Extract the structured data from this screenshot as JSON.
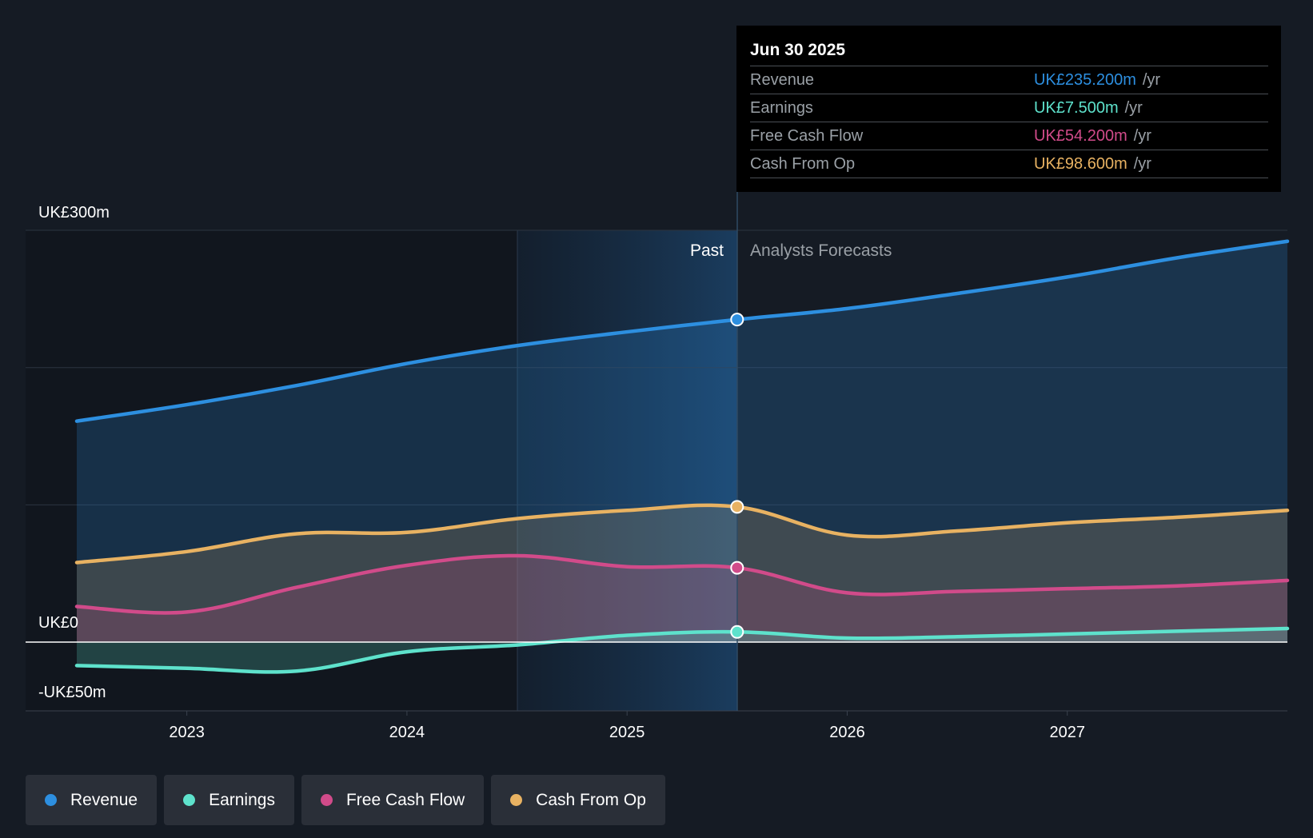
{
  "chart_data": {
    "type": "area",
    "ylim": [
      -50,
      300
    ],
    "y_tick_labels": [
      "UK£300m",
      "UK£0",
      "-UK£50m"
    ],
    "x_tick_labels": [
      "2023",
      "2024",
      "2025",
      "2026",
      "2027"
    ],
    "past_label": "Past",
    "forecast_label": "Analysts Forecasts",
    "series": [
      {
        "key": "revenue",
        "name": "Revenue",
        "color": "#2d8fe0",
        "x": [
          2022.5,
          2023.0,
          2023.5,
          2024.0,
          2024.5,
          2025.0,
          2025.5,
          2026.0,
          2026.5,
          2027.0,
          2027.5,
          2028.0
        ],
        "values": [
          161,
          173,
          187,
          203,
          216,
          226,
          235,
          243,
          254,
          266,
          280,
          292
        ]
      },
      {
        "key": "cash_from_op",
        "name": "Cash From Op",
        "color": "#e8b262",
        "x": [
          2022.5,
          2023.0,
          2023.5,
          2024.0,
          2024.5,
          2025.0,
          2025.5,
          2026.0,
          2026.5,
          2027.0,
          2027.5,
          2028.0
        ],
        "values": [
          58,
          66,
          79,
          80,
          90,
          96,
          98.6,
          78,
          81,
          87,
          91,
          96
        ]
      },
      {
        "key": "free_cash_flow",
        "name": "Free Cash Flow",
        "color": "#d14b8a",
        "x": [
          2022.5,
          2023.0,
          2023.5,
          2024.0,
          2024.5,
          2025.0,
          2025.5,
          2026.0,
          2026.5,
          2027.0,
          2027.5,
          2028.0
        ],
        "values": [
          26,
          22,
          40,
          56,
          63,
          55,
          54.2,
          36,
          37,
          39,
          41,
          45
        ]
      },
      {
        "key": "earnings",
        "name": "Earnings",
        "color": "#5ee2cc",
        "x": [
          2022.5,
          2023.0,
          2023.5,
          2024.0,
          2024.5,
          2025.0,
          2025.5,
          2026.0,
          2026.5,
          2027.0,
          2027.5,
          2028.0
        ],
        "values": [
          -17,
          -19,
          -21,
          -7,
          -2,
          5,
          7.5,
          3,
          4,
          6,
          8,
          10
        ]
      }
    ]
  },
  "tooltip": {
    "date": "Jun 30 2025",
    "unit": "/yr",
    "rows": [
      {
        "label": "Revenue",
        "value": "UK£235.200m",
        "color": "#2d8fe0"
      },
      {
        "label": "Earnings",
        "value": "UK£7.500m",
        "color": "#5ee2cc"
      },
      {
        "label": "Free Cash Flow",
        "value": "UK£54.200m",
        "color": "#d14b8a"
      },
      {
        "label": "Cash From Op",
        "value": "UK£98.600m",
        "color": "#e8b262"
      }
    ]
  },
  "legend": [
    {
      "label": "Revenue",
      "color": "#2d8fe0"
    },
    {
      "label": "Earnings",
      "color": "#5ee2cc"
    },
    {
      "label": "Free Cash Flow",
      "color": "#d14b8a"
    },
    {
      "label": "Cash From Op",
      "color": "#e8b262"
    }
  ]
}
